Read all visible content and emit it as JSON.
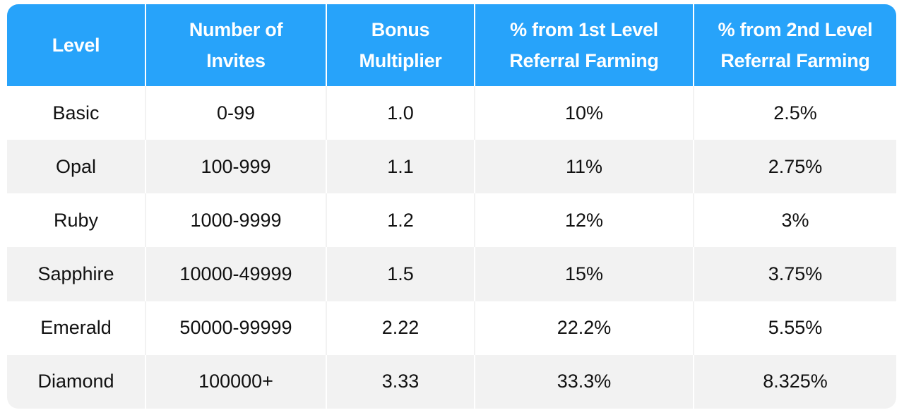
{
  "table": {
    "headers": [
      [
        "Level"
      ],
      [
        "Number of",
        "Invites"
      ],
      [
        "Bonus",
        "Multiplier"
      ],
      [
        "% from 1st Level",
        "Referral Farming"
      ],
      [
        "% from 2nd Level",
        "Referral Farming"
      ]
    ],
    "rows": [
      [
        "Basic",
        "0-99",
        "1.0",
        "10%",
        "2.5%"
      ],
      [
        "Opal",
        "100-999",
        "1.1",
        "11%",
        "2.75%"
      ],
      [
        "Ruby",
        "1000-9999",
        "1.2",
        "12%",
        "3%"
      ],
      [
        "Sapphire",
        "10000-49999",
        "1.5",
        "15%",
        "3.75%"
      ],
      [
        "Emerald",
        "50000-99999",
        "2.22",
        "22.2%",
        "5.55%"
      ],
      [
        "Diamond",
        "100000+",
        "3.33",
        "33.3%",
        "8.325%"
      ]
    ]
  },
  "colors": {
    "header_bg": "#27a3fa",
    "header_text": "#ffffff",
    "row_alt_bg": "#f2f2f2",
    "row_bg": "#ffffff"
  }
}
